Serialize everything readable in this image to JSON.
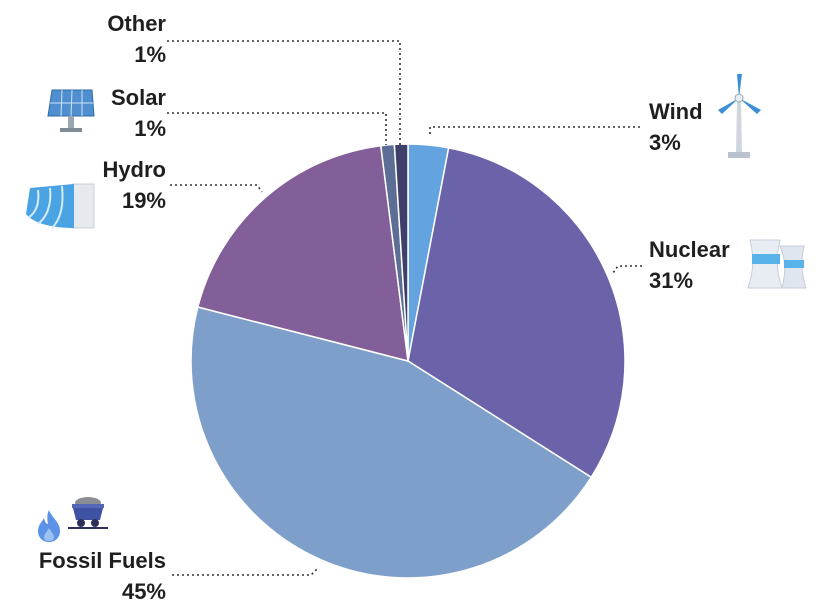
{
  "chart_data": {
    "type": "pie",
    "title": "",
    "slices": [
      {
        "name": "Wind",
        "label": "Wind",
        "percent_label": "3%",
        "value": 3,
        "color": "#62a3e0"
      },
      {
        "name": "Nuclear",
        "label": "Nuclear",
        "percent_label": "31%",
        "value": 31,
        "color": "#6a63aa"
      },
      {
        "name": "Fossil Fuels",
        "label": "Fossil Fuels",
        "percent_label": "45%",
        "value": 45,
        "color": "#7f9fcb"
      },
      {
        "name": "Hydro",
        "label": "Hydro",
        "percent_label": "19%",
        "value": 19,
        "color": "#835f99"
      },
      {
        "name": "Solar",
        "label": "Solar",
        "percent_label": "1%",
        "value": 1,
        "color": "#5c6e96"
      },
      {
        "name": "Other",
        "label": "Other",
        "percent_label": "1%",
        "value": 1,
        "color": "#3e3f6a"
      }
    ],
    "start_angle_deg": 0,
    "direction": "clockwise",
    "legend": "none",
    "leader_lines": "dotted"
  },
  "icons": {
    "wind": "wind-turbine-icon",
    "nuclear": "cooling-tower-icon",
    "fossil_flame": "flame-icon",
    "fossil_coal": "coal-cart-icon",
    "hydro": "dam-icon",
    "solar": "solar-panel-icon"
  }
}
